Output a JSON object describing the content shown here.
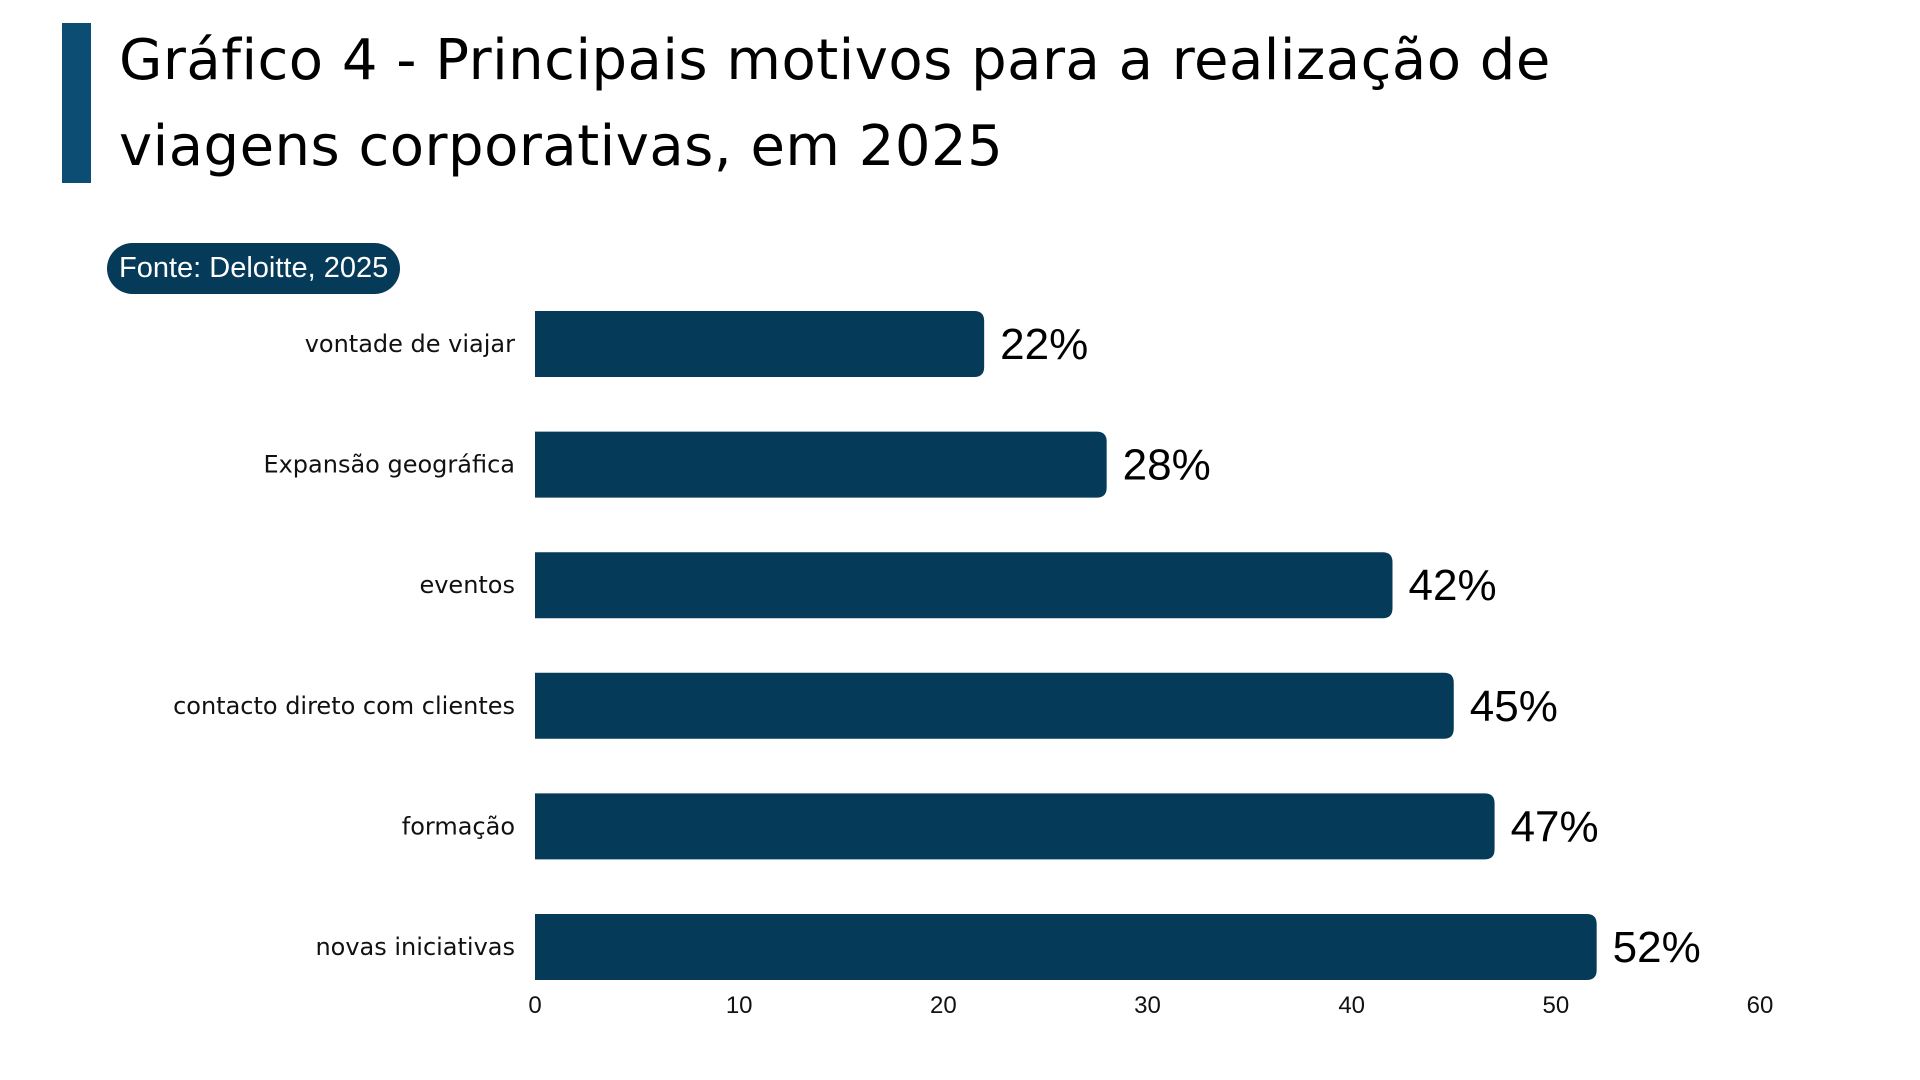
{
  "title": "Gráfico 4 - Principais motivos para a realização de viagens corporativas, em 2025",
  "title_lines": [
    "Gráfico 4 - Principais motivos para a realização de",
    "viagens corporativas, em 2025"
  ],
  "source": "Fonte: Deloitte, 2025",
  "colors": {
    "accent": "#0b4d73",
    "bar": "#053a58",
    "pill": "#053a58"
  },
  "chart_data": {
    "type": "bar",
    "orientation": "horizontal",
    "title": "Gráfico 4 - Principais motivos para a realização de viagens corporativas, em 2025",
    "categories": [
      "vontade de viajar",
      "Expansão geográfica",
      "eventos",
      "contacto direto com clientes",
      "formação",
      "novas iniciativas"
    ],
    "values": [
      22,
      28,
      42,
      45,
      47,
      52
    ],
    "value_labels": [
      "22%",
      "28%",
      "42%",
      "45%",
      "47%",
      "52%"
    ],
    "xlim": [
      0,
      60
    ],
    "xticks": [
      0,
      10,
      20,
      30,
      40,
      50,
      60
    ],
    "xtick_labels": [
      "0",
      "10",
      "20",
      "30",
      "40",
      "50",
      "60"
    ],
    "xlabel": "",
    "ylabel": "",
    "grid": false,
    "legend": "none"
  }
}
